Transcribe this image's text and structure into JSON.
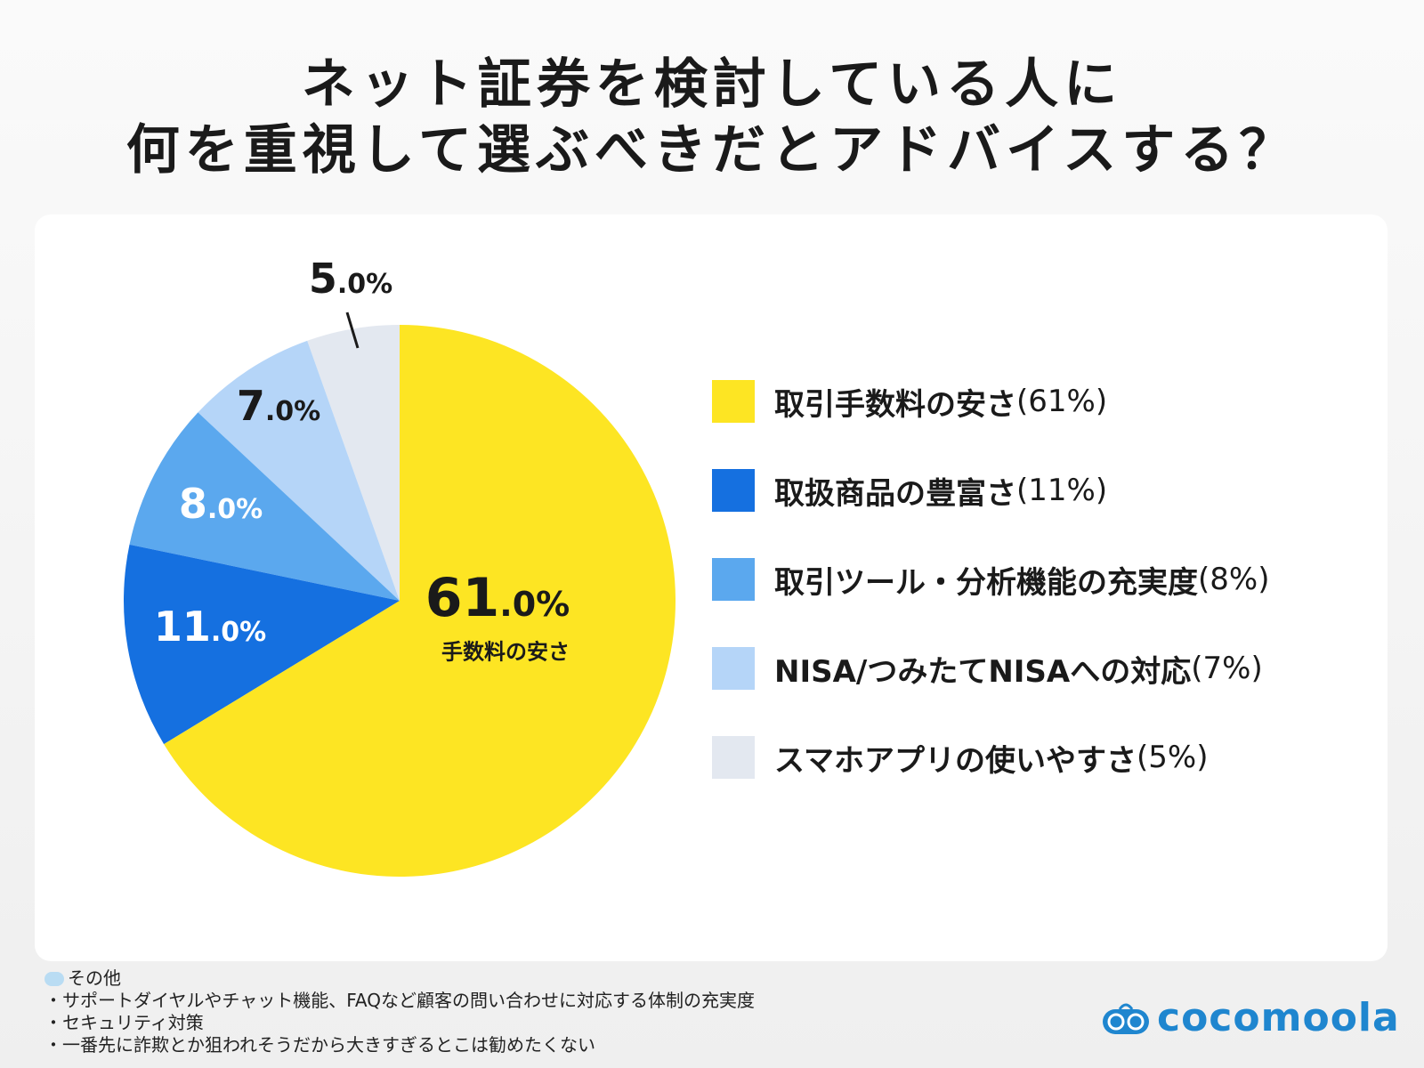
{
  "title": {
    "line1": "ネット証券を検討している人に",
    "line2": "何を重視して選ぶべきだとアドバイスする？"
  },
  "chart_data": {
    "type": "pie",
    "start": "top",
    "direction": "clockwise",
    "categories": [
      "取引手数料の安さ",
      "取扱商品の豊富さ",
      "取引ツール・分析機能の充実度",
      "NISA/つみたてNISAへの対応",
      "スマホアプリの使いやすさ"
    ],
    "values": [
      61,
      11,
      8,
      7,
      5
    ],
    "colors": [
      "#FDE523",
      "#1570E0",
      "#5BA8EE",
      "#B5D5F8",
      "#E3E8F0"
    ],
    "data_labels": [
      {
        "num": "61",
        "dec": ".0%",
        "sub": "手数料の安さ"
      },
      {
        "num": "11",
        "dec": ".0%"
      },
      {
        "num": "8",
        "dec": ".0%"
      },
      {
        "num": "7",
        "dec": ".0%"
      },
      {
        "num": "5",
        "dec": ".0%"
      }
    ],
    "legend": [
      {
        "label": "取引手数料の安さ",
        "pct": "(61%)"
      },
      {
        "label": "取扱商品の豊富さ",
        "pct": "(11%)"
      },
      {
        "label": "取引ツール・分析機能の充実度",
        "pct": "(8%)"
      },
      {
        "label": "NISA/つみたてNISAへの対応",
        "pct": "(7%)"
      },
      {
        "label": "スマホアプリの使いやすさ",
        "pct": "(5%)"
      }
    ],
    "legend_position": "right"
  },
  "notes": {
    "heading": "その他",
    "items": [
      "・サポートダイヤルやチャット機能、FAQなど顧客の問い合わせに対応する体制の充実度",
      "・セキュリティ対策",
      "・一番先に詐欺とか狙われそうだから大きすぎるとこは勧めたくない"
    ]
  },
  "logo": {
    "text": "cocomoola",
    "color": "#1F86CF"
  }
}
